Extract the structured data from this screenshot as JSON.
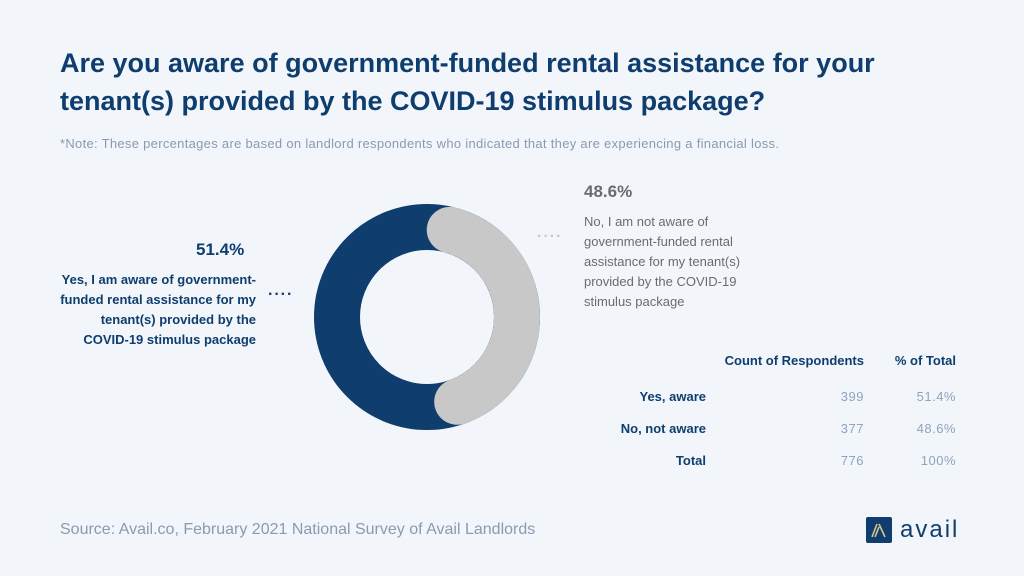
{
  "title": "Are you aware of government-funded rental assistance for your tenant(s) provided by the COVID-19 stimulus package?",
  "note": "*Note: These percentages are based on landlord respondents who indicated that they are experiencing a financial loss.",
  "source": "Source: Avail.co, February 2021 National Survey of Avail Landlords",
  "logo": "avail",
  "colors": {
    "aware": "#0e3d6e",
    "not_aware": "#c8c8c8",
    "background": "#f2f6fb"
  },
  "chart_data": {
    "type": "pie",
    "variant": "donut",
    "slices": [
      {
        "pct_label": "51.4%",
        "value": 51.4,
        "label": "Yes, I am aware of government-funded rental assistance for my tenant(s) provided by the COVID-19 stimulus package",
        "color": "#0e3d6e"
      },
      {
        "pct_label": "48.6%",
        "value": 48.6,
        "label": "No, I am not aware of government-funded rental assistance for my tenant(s) provided by the COVID-19 stimulus package",
        "color": "#c8c8c8"
      }
    ]
  },
  "table": {
    "headers": [
      "Count of Respondents",
      "% of Total"
    ],
    "rows": [
      {
        "label": "Yes, aware",
        "count": "399",
        "pct": "51.4%"
      },
      {
        "label": "No, not aware",
        "count": "377",
        "pct": "48.6%"
      },
      {
        "label": "Total",
        "count": "776",
        "pct": "100%"
      }
    ]
  }
}
